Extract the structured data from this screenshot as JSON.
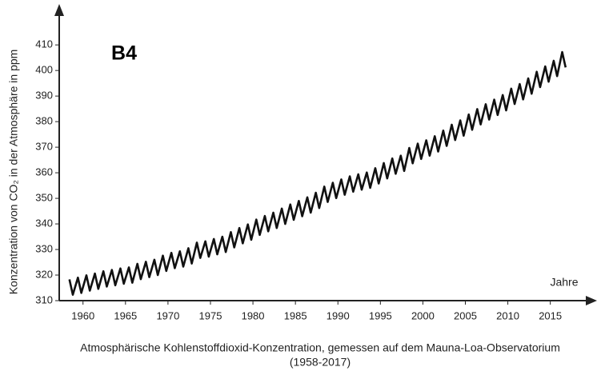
{
  "chart_data": {
    "type": "line",
    "annotation": "B4",
    "ylabel": "Konzentration von CO₂ in der Atmosphäre in ppm",
    "xlabel": "Jahre",
    "caption": [
      "Atmosphärische Kohlenstoffdioxid-Konzentration, gemessen auf dem Mauna-Loa-Observatorium",
      "(1958-2017)"
    ],
    "xlim": [
      1957.2,
      2020.4
    ],
    "ylim": [
      310,
      426
    ],
    "xticks": [
      1960,
      1965,
      1970,
      1975,
      1980,
      1985,
      1990,
      1995,
      2000,
      2005,
      2010,
      2015
    ],
    "yticks": [
      310,
      320,
      330,
      340,
      350,
      360,
      370,
      380,
      390,
      400,
      410
    ],
    "series": [
      {
        "color": "#111111",
        "x": [
          1958.4,
          1958.8,
          1959.4,
          1959.8,
          1960.4,
          1960.8,
          1961.4,
          1961.8,
          1962.4,
          1962.8,
          1963.4,
          1963.8,
          1964.4,
          1964.8,
          1965.4,
          1965.8,
          1966.4,
          1966.8,
          1967.4,
          1967.8,
          1968.4,
          1968.8,
          1969.4,
          1969.8,
          1970.4,
          1970.8,
          1971.4,
          1971.8,
          1972.4,
          1972.8,
          1973.4,
          1973.8,
          1974.4,
          1974.8,
          1975.4,
          1975.8,
          1976.4,
          1976.8,
          1977.4,
          1977.8,
          1978.4,
          1978.8,
          1979.4,
          1979.8,
          1980.4,
          1980.8,
          1981.4,
          1981.8,
          1982.4,
          1982.8,
          1983.4,
          1983.8,
          1984.4,
          1984.8,
          1985.4,
          1985.8,
          1986.4,
          1986.8,
          1987.4,
          1987.8,
          1988.4,
          1988.8,
          1989.4,
          1989.8,
          1990.4,
          1990.8,
          1991.4,
          1991.8,
          1992.4,
          1992.8,
          1993.4,
          1993.8,
          1994.4,
          1994.8,
          1995.4,
          1995.8,
          1996.4,
          1996.8,
          1997.4,
          1997.8,
          1998.4,
          1998.8,
          1999.4,
          1999.8,
          2000.4,
          2000.8,
          2001.4,
          2001.8,
          2002.4,
          2002.8,
          2003.4,
          2003.8,
          2004.4,
          2004.8,
          2005.4,
          2005.8,
          2006.4,
          2006.8,
          2007.4,
          2007.8,
          2008.4,
          2008.8,
          2009.4,
          2009.8,
          2010.4,
          2010.8,
          2011.4,
          2011.8,
          2012.4,
          2012.8,
          2013.4,
          2013.8,
          2014.4,
          2014.8,
          2015.4,
          2015.8,
          2016.4,
          2016.8
        ],
        "values": [
          318.3,
          312.3,
          319.0,
          313.0,
          319.9,
          313.9,
          320.6,
          314.6,
          321.5,
          315.5,
          322.0,
          316.0,
          322.6,
          316.6,
          323.0,
          317.0,
          324.4,
          318.4,
          325.2,
          319.2,
          326.0,
          320.0,
          327.6,
          321.6,
          328.7,
          322.7,
          329.3,
          323.3,
          330.5,
          324.5,
          332.7,
          326.7,
          333.2,
          327.2,
          334.1,
          328.1,
          335.0,
          329.0,
          336.8,
          330.8,
          338.4,
          332.4,
          339.8,
          333.8,
          341.7,
          335.7,
          343.1,
          337.1,
          344.4,
          338.4,
          346.0,
          340.0,
          347.6,
          341.6,
          349.0,
          343.0,
          350.4,
          344.4,
          352.2,
          346.2,
          354.6,
          348.6,
          356.1,
          350.1,
          357.4,
          351.4,
          358.6,
          352.6,
          359.4,
          353.4,
          360.1,
          354.1,
          361.8,
          355.8,
          363.8,
          357.8,
          365.6,
          359.6,
          366.7,
          360.7,
          369.7,
          363.7,
          371.4,
          365.4,
          372.7,
          366.7,
          374.3,
          368.3,
          376.5,
          370.5,
          378.8,
          372.8,
          380.5,
          374.5,
          382.8,
          376.8,
          384.9,
          378.9,
          386.8,
          380.8,
          388.6,
          382.6,
          390.4,
          384.4,
          392.9,
          386.9,
          394.7,
          388.7,
          396.9,
          390.9,
          399.5,
          393.5,
          401.6,
          395.6,
          403.8,
          397.8,
          407.2,
          401.2
        ]
      }
    ]
  }
}
